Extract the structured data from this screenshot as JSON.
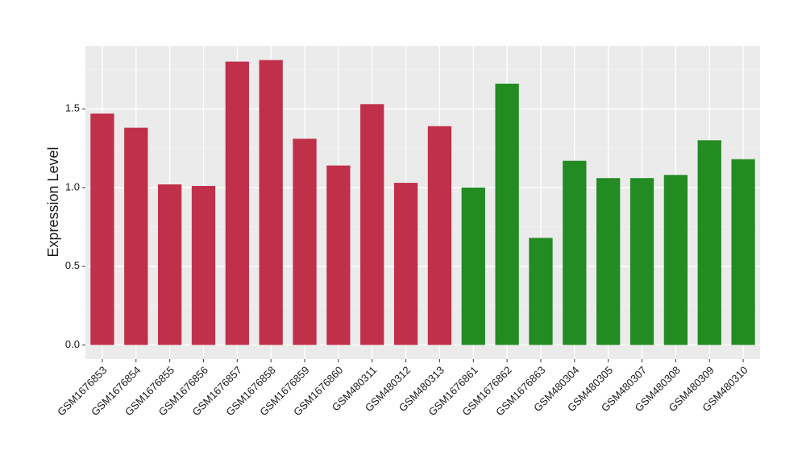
{
  "chart_data": {
    "type": "bar",
    "y_label": "Expression Level",
    "categories": [
      "GSM1676853",
      "GSM1676854",
      "GSM1676855",
      "GSM1676856",
      "GSM1676857",
      "GSM1676858",
      "GSM1676859",
      "GSM1676860",
      "GSM480311",
      "GSM480312",
      "GSM480313",
      "GSM1676861",
      "GSM1676862",
      "GSM1676863",
      "GSM480304",
      "GSM480305",
      "GSM480307",
      "GSM480308",
      "GSM480309",
      "GSM480310"
    ],
    "values": [
      1.47,
      1.38,
      1.02,
      1.01,
      1.8,
      1.81,
      1.31,
      1.14,
      1.53,
      1.03,
      1.39,
      1.0,
      1.66,
      0.68,
      1.17,
      1.06,
      1.06,
      1.08,
      1.3,
      1.18
    ],
    "colors": [
      "#c0304a",
      "#c0304a",
      "#c0304a",
      "#c0304a",
      "#c0304a",
      "#c0304a",
      "#c0304a",
      "#c0304a",
      "#c0304a",
      "#c0304a",
      "#c0304a",
      "#228b22",
      "#228b22",
      "#228b22",
      "#228b22",
      "#228b22",
      "#228b22",
      "#228b22",
      "#228b22",
      "#228b22"
    ],
    "ylim": [
      -0.09,
      1.9
    ],
    "yticks": [
      {
        "value": 0,
        "label": "0.0"
      },
      0.5,
      {
        "value": 1,
        "label": "1.0"
      },
      1.5
    ],
    "grid": true
  }
}
